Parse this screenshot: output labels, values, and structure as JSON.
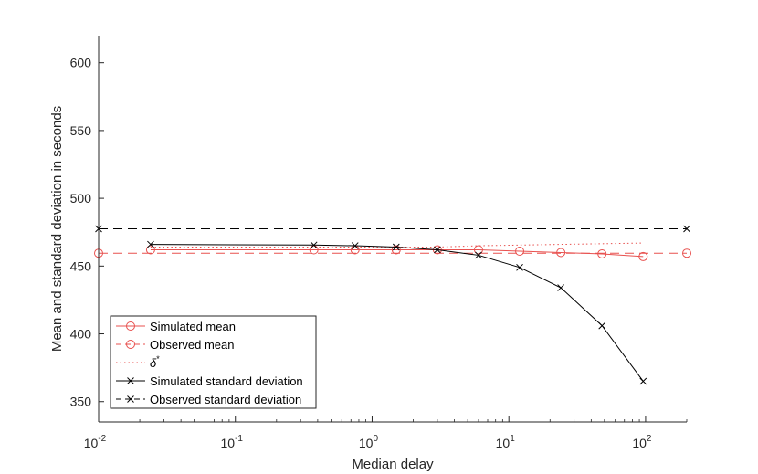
{
  "chart_data": {
    "type": "line",
    "xlabel": "Median delay",
    "ylabel": "Mean and standard deviation in seconds",
    "xscale": "log",
    "xlim": [
      0.01,
      200
    ],
    "ylim": [
      335,
      620
    ],
    "yticks": [
      350,
      400,
      450,
      500,
      550,
      600
    ],
    "xticks": [
      {
        "value": 0.01,
        "base": "10",
        "exp": "-2"
      },
      {
        "value": 0.1,
        "base": "10",
        "exp": "-1"
      },
      {
        "value": 1,
        "base": "10",
        "exp": "0"
      },
      {
        "value": 10,
        "base": "10",
        "exp": "1"
      },
      {
        "value": 100,
        "base": "10",
        "exp": "2"
      }
    ],
    "grid": false,
    "legend_position": "bottom-left",
    "series": [
      {
        "name": "Simulated mean",
        "color": "#e8514f",
        "dash": "solid",
        "marker": "circle",
        "x": [
          0.024,
          0.375,
          0.75,
          1.5,
          3,
          6,
          12,
          24,
          48,
          96
        ],
        "y": [
          462,
          462,
          462,
          462,
          462,
          462,
          461,
          460,
          459,
          457
        ]
      },
      {
        "name": "Observed mean",
        "color": "#e8514f",
        "dash": "dashed",
        "marker": "circle",
        "x": [
          0.01,
          200
        ],
        "y": [
          459.5,
          459.5
        ]
      },
      {
        "name": "δ*",
        "color": "#e8514f",
        "dash": "dotted",
        "marker": "none",
        "x": [
          0.024,
          0.375,
          0.75,
          1.5,
          3,
          6,
          12,
          24,
          48,
          96
        ],
        "y": [
          464,
          464,
          464,
          464,
          464,
          465,
          465.5,
          466,
          466.5,
          467
        ]
      },
      {
        "name": "Simulated standard deviation",
        "color": "#000000",
        "dash": "solid",
        "marker": "x",
        "x": [
          0.024,
          0.375,
          0.75,
          1.5,
          3,
          6,
          12,
          24,
          48,
          96
        ],
        "y": [
          466,
          465.5,
          465,
          464,
          462,
          458,
          449,
          434,
          406,
          365
        ]
      },
      {
        "name": "Observed standard deviation",
        "color": "#000000",
        "dash": "dashed",
        "marker": "x",
        "x": [
          0.01,
          200
        ],
        "y": [
          477.5,
          477.5
        ]
      }
    ]
  }
}
